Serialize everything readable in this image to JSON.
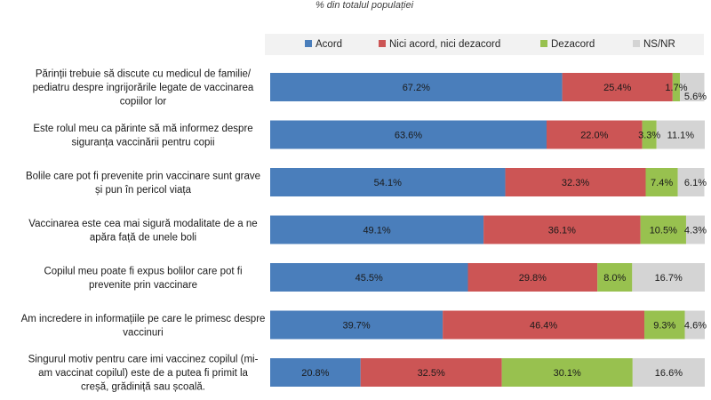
{
  "chart_data": {
    "type": "bar",
    "orientation": "horizontal",
    "stacked": true,
    "subtitle": "% din totalul populației",
    "xlim": [
      0,
      100
    ],
    "legend_position": "top",
    "series": [
      {
        "name": "Acord",
        "color": "#4a7ebb",
        "values": [
          67.2,
          63.6,
          54.1,
          49.1,
          45.5,
          39.7,
          20.8
        ]
      },
      {
        "name": "Nici acord, nici dezacord",
        "color": "#cc5555",
        "values": [
          25.4,
          22.0,
          32.3,
          36.1,
          29.8,
          46.4,
          32.5
        ]
      },
      {
        "name": "Dezacord",
        "color": "#98c14f",
        "values": [
          1.7,
          3.3,
          7.4,
          10.5,
          8.0,
          9.3,
          30.1
        ]
      },
      {
        "name": "NS/NR",
        "color": "#d4d4d4",
        "values": [
          5.6,
          11.1,
          6.1,
          4.3,
          16.7,
          4.6,
          16.6
        ]
      }
    ],
    "categories": [
      [
        "Părinții trebuie să discute cu medicul de familie/",
        "pediatru despre ingrijorările legate de vaccinarea",
        "copiilor lor"
      ],
      [
        "Este rolul meu ca părinte să mă informez despre",
        "siguranța vaccinării pentru copii"
      ],
      [
        "Bolile care pot fi prevenite prin vaccinare sunt grave",
        "și pun în pericol viața"
      ],
      [
        "Vaccinarea este cea mai sigură modalitate de a ne",
        "apăra față de unele boli"
      ],
      [
        "Copilul meu poate fi  expus  bolilor care pot fi",
        "prevenite prin vaccinare"
      ],
      [
        "Am incredere in informațiile pe care le primesc despre",
        "vaccinuri"
      ],
      [
        "Singurul motiv pentru care imi vaccinez copilul (mi-",
        "am vaccinat copilul) este  de a putea fi primit  la",
        "creșă, grădiniță sau școală."
      ]
    ],
    "value_labels": [
      [
        "67.2%",
        "25.4%",
        "1.7%",
        "5.6%"
      ],
      [
        "63.6%",
        "22.0%",
        "3.3%",
        "11.1%"
      ],
      [
        "54.1%",
        "32.3%",
        "7.4%",
        "6.1%"
      ],
      [
        "49.1%",
        "36.1%",
        "10.5%",
        "4.3%"
      ],
      [
        "45.5%",
        "29.8%",
        "8.0%",
        "16.7%"
      ],
      [
        "39.7%",
        "46.4%",
        "9.3%",
        "4.6%"
      ],
      [
        "20.8%",
        "32.5%",
        "30.1%",
        "16.6%"
      ]
    ]
  }
}
